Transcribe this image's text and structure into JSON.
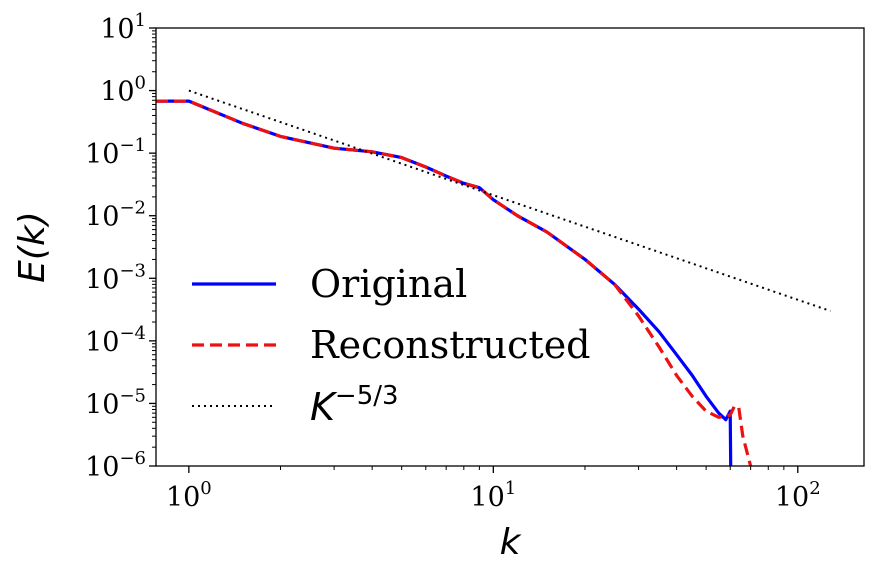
{
  "chart_data": {
    "type": "line",
    "title": "",
    "xlabel": "k",
    "ylabel": "E(k)",
    "xscale": "log",
    "yscale": "log",
    "xlim": [
      0.78,
      165
    ],
    "ylim": [
      1e-06,
      10
    ],
    "grid": false,
    "legend_position": "lower-left",
    "x_ticks": [
      {
        "value": 1,
        "base": "10",
        "exp": "0"
      },
      {
        "value": 10,
        "base": "10",
        "exp": "1"
      },
      {
        "value": 100,
        "base": "10",
        "exp": "2"
      }
    ],
    "y_ticks": [
      {
        "value": 10,
        "base": "10",
        "exp": "1"
      },
      {
        "value": 1,
        "base": "10",
        "exp": "0"
      },
      {
        "value": 0.1,
        "base": "10",
        "exp": "−1"
      },
      {
        "value": 0.01,
        "base": "10",
        "exp": "−2"
      },
      {
        "value": 0.001,
        "base": "10",
        "exp": "−3"
      },
      {
        "value": 0.0001,
        "base": "10",
        "exp": "−4"
      },
      {
        "value": 1e-05,
        "base": "10",
        "exp": "−5"
      },
      {
        "value": 1e-06,
        "base": "10",
        "exp": "−6"
      }
    ],
    "series": [
      {
        "name": "Original",
        "color": "#0000ff",
        "style": "solid",
        "points": [
          [
            0.78,
            0.68
          ],
          [
            1.0,
            0.68
          ],
          [
            1.5,
            0.3
          ],
          [
            2.0,
            0.185
          ],
          [
            3.0,
            0.12
          ],
          [
            4.0,
            0.105
          ],
          [
            5.0,
            0.085
          ],
          [
            6.0,
            0.06
          ],
          [
            7.0,
            0.043
          ],
          [
            8.0,
            0.033
          ],
          [
            9.0,
            0.028
          ],
          [
            10.0,
            0.018
          ],
          [
            12.0,
            0.01
          ],
          [
            15.0,
            0.0055
          ],
          [
            20.0,
            0.002
          ],
          [
            25.0,
            0.0008
          ],
          [
            30.0,
            0.00032
          ],
          [
            35.0,
            0.00014
          ],
          [
            40.0,
            6e-05
          ],
          [
            45.0,
            2.8e-05
          ],
          [
            50.0,
            1.3e-05
          ],
          [
            55.0,
            7e-06
          ],
          [
            58.0,
            5.5e-06
          ],
          [
            60.0,
            7.5e-06
          ],
          [
            60.2,
            1e-06
          ]
        ]
      },
      {
        "name": "Reconstructed",
        "color": "#ee1111",
        "style": "dashed",
        "points": [
          [
            0.78,
            0.68
          ],
          [
            1.0,
            0.68
          ],
          [
            1.5,
            0.3
          ],
          [
            2.0,
            0.185
          ],
          [
            3.0,
            0.12
          ],
          [
            4.0,
            0.105
          ],
          [
            5.0,
            0.085
          ],
          [
            6.0,
            0.06
          ],
          [
            7.0,
            0.043
          ],
          [
            8.0,
            0.033
          ],
          [
            9.0,
            0.028
          ],
          [
            10.0,
            0.018
          ],
          [
            12.0,
            0.01
          ],
          [
            15.0,
            0.0055
          ],
          [
            20.0,
            0.002
          ],
          [
            25.0,
            0.0008
          ],
          [
            30.0,
            0.00025
          ],
          [
            35.0,
            8e-05
          ],
          [
            40.0,
            2.8e-05
          ],
          [
            45.0,
            1.3e-05
          ],
          [
            50.0,
            7.5e-06
          ],
          [
            55.0,
            6e-06
          ],
          [
            60.0,
            6.5e-06
          ],
          [
            62.0,
            9.2e-06
          ],
          [
            64.0,
            8.5e-06
          ],
          [
            66.0,
            3e-06
          ],
          [
            70.0,
            1e-06
          ]
        ]
      },
      {
        "name": "K^{-5/3}",
        "legend_base": "K",
        "legend_exp": "−5/3",
        "color": "#000000",
        "style": "dotted",
        "points": [
          [
            1.0,
            1.0
          ],
          [
            128.0,
            0.0003
          ]
        ]
      }
    ]
  }
}
